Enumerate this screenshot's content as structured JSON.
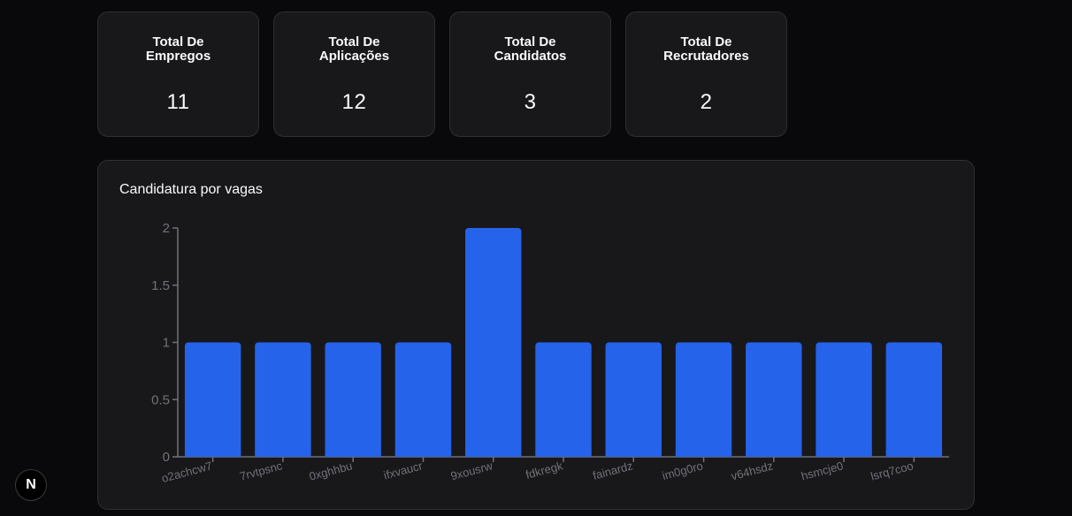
{
  "stats": [
    {
      "title": "Total De Empregos",
      "value": "11"
    },
    {
      "title": "Total De Aplicações",
      "value": "12"
    },
    {
      "title": "Total De Candidatos",
      "value": "3"
    },
    {
      "title": "Total De Recrutadores",
      "value": "2"
    }
  ],
  "chart": {
    "title": "Candidatura por vagas"
  },
  "badge": {
    "label": "N",
    "icon": "nextjs-logo-icon"
  },
  "colors": {
    "bar": "#2563eb",
    "card": "#18181b",
    "background": "#09090b",
    "axis": "#71717a"
  },
  "chart_data": {
    "type": "bar",
    "categories": [
      "o2achcw7",
      "7rvtpsnc",
      "0xghhbu",
      "ifxvaucr",
      "9xousrw",
      "fdkregk",
      "fainardz",
      "im0g0ro",
      "v64hsdz",
      "hsmcje0",
      "lsrq7coo"
    ],
    "values": [
      1,
      1,
      1,
      1,
      2,
      1,
      1,
      1,
      1,
      1,
      1
    ],
    "yticks": [
      "0",
      "0.5",
      "1",
      "1.5",
      "2"
    ],
    "ylim": [
      0,
      2
    ],
    "grid": false,
    "legend": "none"
  }
}
